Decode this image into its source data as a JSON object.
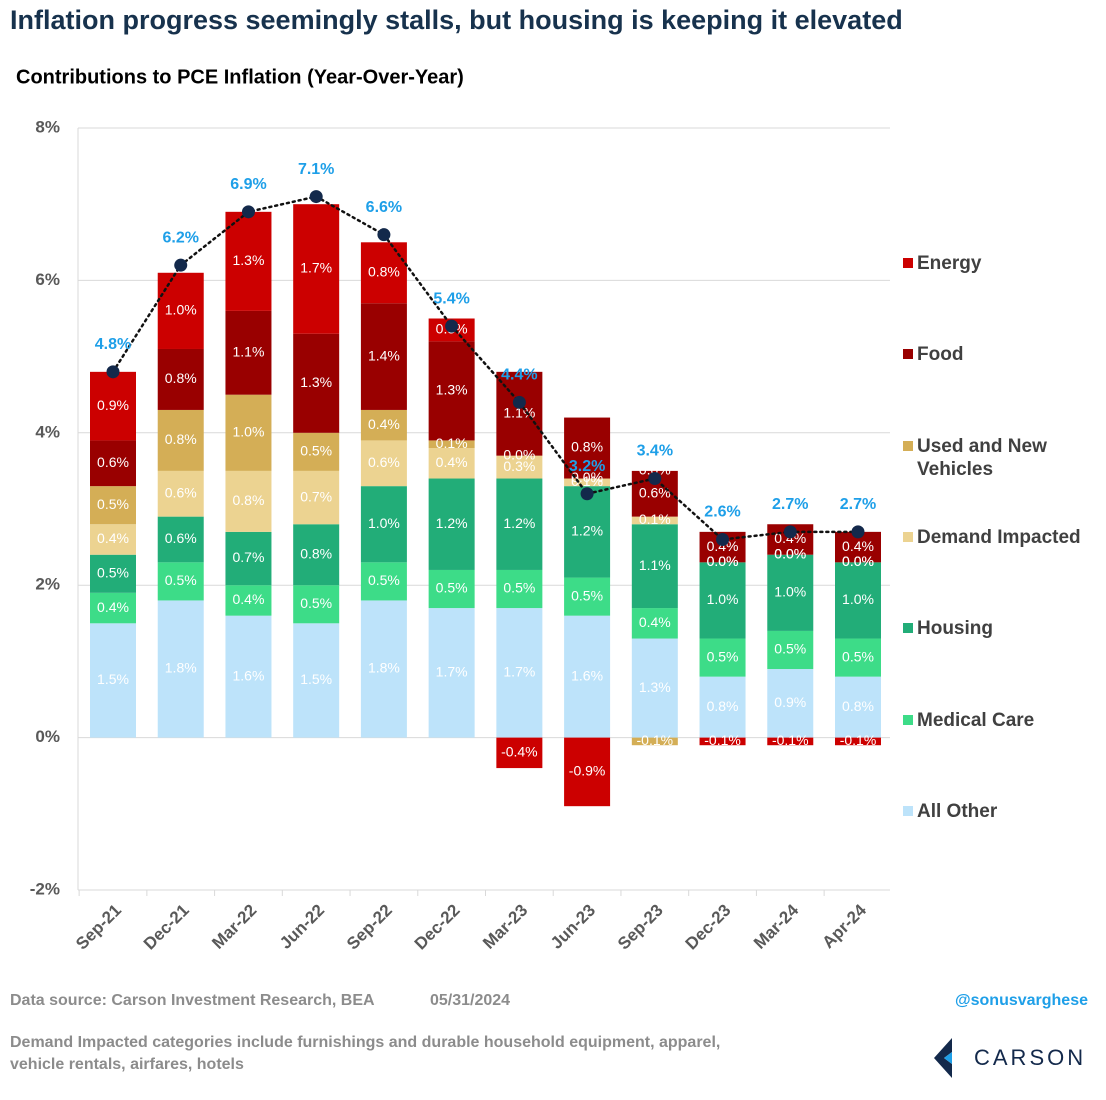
{
  "title": "Inflation progress seemingly stalls, but housing is keeping it elevated",
  "footer": {
    "source": "Data source: Carson Investment Research, BEA",
    "date": "05/31/2024",
    "handle": "@sonusvarghese",
    "note": "Demand Impacted categories include furnishings and durable household equipment, apparel, vehicle rentals, airfares, hotels",
    "logo": "CARSON"
  },
  "chart_data": {
    "type": "stacked-bar",
    "title": "Contributions to PCE Inflation (Year-Over-Year)",
    "categories": [
      "Sep-21",
      "Dec-21",
      "Mar-22",
      "Jun-22",
      "Sep-22",
      "Dec-22",
      "Mar-23",
      "Jun-23",
      "Sep-23",
      "Dec-23",
      "Mar-24",
      "Apr-24"
    ],
    "ylim": [
      -2,
      8
    ],
    "yticks": [
      {
        "value": -2,
        "label": "-2%"
      },
      {
        "value": 0,
        "label": "0%"
      },
      {
        "value": 2,
        "label": "2%"
      },
      {
        "value": 4,
        "label": "4%"
      },
      {
        "value": 6,
        "label": "6%"
      },
      {
        "value": 8,
        "label": "8%"
      }
    ],
    "grid": true,
    "legend": "right",
    "series": [
      {
        "name": "All Other",
        "color": "#bde3fa",
        "values": [
          1.5,
          1.8,
          1.6,
          1.5,
          1.8,
          1.7,
          1.7,
          1.6,
          1.3,
          0.8,
          0.9,
          0.8
        ],
        "value_labels": [
          "1.5%",
          "1.8%",
          "1.6%",
          "1.5%",
          "1.8%",
          "1.7%",
          "1.7%",
          "1.6%",
          "1.3%",
          "0.8%",
          "0.9%",
          "0.8%"
        ]
      },
      {
        "name": "Medical Care",
        "color": "#3ddc88",
        "values": [
          0.4,
          0.5,
          0.4,
          0.5,
          0.5,
          0.5,
          0.5,
          0.5,
          0.4,
          0.5,
          0.5,
          0.5
        ],
        "value_labels": [
          "0.4%",
          "0.5%",
          "0.4%",
          "0.5%",
          "0.5%",
          "0.5%",
          "0.5%",
          "0.5%",
          "0.4%",
          "0.5%",
          "0.5%",
          "0.5%"
        ]
      },
      {
        "name": "Housing",
        "color": "#22ad78",
        "values": [
          0.5,
          0.6,
          0.7,
          0.8,
          1.0,
          1.2,
          1.2,
          1.2,
          1.1,
          1.0,
          1.0,
          1.0
        ],
        "value_labels": [
          "0.5%",
          "0.6%",
          "0.7%",
          "0.8%",
          "1.0%",
          "1.2%",
          "1.2%",
          "1.2%",
          "1.1%",
          "1.0%",
          "1.0%",
          "1.0%"
        ]
      },
      {
        "name": "Demand Impacted",
        "color": "#ecd391",
        "values": [
          0.4,
          0.6,
          0.8,
          0.7,
          0.6,
          0.4,
          0.3,
          0.1,
          0.1,
          0.0,
          0.0,
          0.0
        ],
        "value_labels": [
          "0.4%",
          "0.6%",
          "0.8%",
          "0.7%",
          "0.6%",
          "0.4%",
          "0.3%",
          "0.1%",
          "0.1%",
          "0.0%",
          "0.0%",
          "0.0%"
        ]
      },
      {
        "name": "Used and New Vehicles",
        "color": "#d4ae56",
        "values": [
          0.5,
          0.8,
          1.0,
          0.5,
          0.4,
          0.1,
          0.0,
          0.0,
          -0.1,
          0.0,
          0.0,
          0.0
        ],
        "value_labels": [
          "0.5%",
          "0.8%",
          "1.0%",
          "0.5%",
          "0.4%",
          "0.1%",
          "0.0%",
          "0.0%",
          "-0.1%",
          "0.0%",
          "0.0%",
          "0.0%"
        ]
      },
      {
        "name": "Food",
        "color": "#990000",
        "values": [
          0.6,
          0.8,
          1.1,
          1.3,
          1.4,
          1.3,
          1.1,
          0.8,
          0.6,
          0.4,
          0.4,
          0.4
        ],
        "value_labels": [
          "0.6%",
          "0.8%",
          "1.1%",
          "1.3%",
          "1.4%",
          "1.3%",
          "1.1%",
          "0.8%",
          "0.6%",
          "0.4%",
          "0.4%",
          "0.4%"
        ]
      },
      {
        "name": "Energy",
        "color": "#cc0000",
        "values": [
          0.9,
          1.0,
          1.3,
          1.7,
          0.8,
          0.3,
          -0.4,
          -0.9,
          0.0,
          -0.1,
          -0.1,
          -0.1
        ],
        "value_labels": [
          "0.9%",
          "1.0%",
          "1.3%",
          "1.7%",
          "0.8%",
          "0.3%",
          "-0.4%",
          "-0.9%",
          "0.0%",
          "-0.1%",
          "-0.1%",
          "-0.1%"
        ]
      }
    ],
    "line": {
      "color": "#111111",
      "marker_color": "#13294b",
      "label_color": "#1e9fe8",
      "values": [
        4.8,
        6.2,
        6.9,
        7.1,
        6.6,
        5.4,
        4.4,
        3.2,
        3.4,
        2.6,
        2.7,
        2.7
      ],
      "value_labels": [
        "4.8%",
        "6.2%",
        "6.9%",
        "7.1%",
        "6.6%",
        "5.4%",
        "4.4%",
        "3.2%",
        "3.4%",
        "2.6%",
        "2.7%",
        "2.7%"
      ]
    }
  }
}
